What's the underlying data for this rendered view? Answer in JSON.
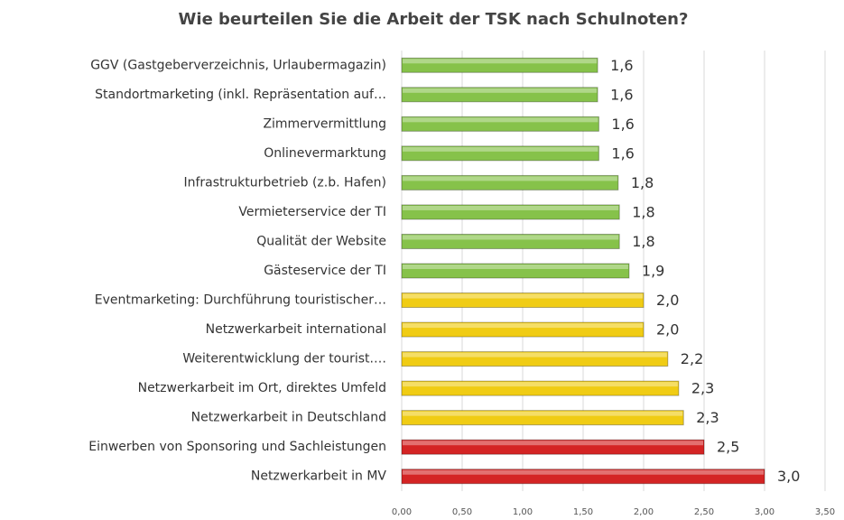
{
  "chart_data": {
    "type": "bar",
    "orientation": "horizontal",
    "title": "Wie beurteilen Sie die Arbeit der TSK nach Schulnoten?",
    "categories": [
      "GGV (Gastgeberverzeichnis, Urlaubermagazin)",
      "Standortmarketing (inkl. Repräsentation auf…",
      "Zimmervermittlung",
      "Onlinevermarktung",
      "Infrastrukturbetrieb (z.b. Hafen)",
      "Vermieterservice der TI",
      "Qualität der Website",
      "Gästeservice der TI",
      "Eventmarketing: Durchführung touristischer…",
      "Netzwerkarbeit international",
      "Weiterentwicklung der tourist.…",
      "Netzwerkarbeit im Ort, direktes Umfeld",
      "Netzwerkarbeit in Deutschland",
      "Einwerben von Sponsoring und Sachleistungen",
      "Netzwerkarbeit in MV"
    ],
    "values": [
      1.62,
      1.62,
      1.63,
      1.63,
      1.79,
      1.8,
      1.8,
      1.88,
      2.0,
      2.0,
      2.2,
      2.29,
      2.33,
      2.5,
      3.0
    ],
    "value_labels": [
      "1,6",
      "1,6",
      "1,6",
      "1,6",
      "1,8",
      "1,8",
      "1,8",
      "1,9",
      "2,0",
      "2,0",
      "2,2",
      "2,3",
      "2,3",
      "2,5",
      "3,0"
    ],
    "colors": [
      "#86c24a",
      "#86c24a",
      "#86c24a",
      "#86c24a",
      "#86c24a",
      "#86c24a",
      "#86c24a",
      "#86c24a",
      "#f0cc14",
      "#f0cc14",
      "#f0cc14",
      "#f0cc14",
      "#f0cc14",
      "#d42424",
      "#d42424"
    ],
    "xlim": [
      0,
      3.5
    ],
    "xticks": [
      {
        "value": 0,
        "label": "0,00"
      },
      {
        "value": 0.5,
        "label": "0,50"
      },
      {
        "value": 1,
        "label": "1,00"
      },
      {
        "value": 1.5,
        "label": "1,50"
      },
      {
        "value": 2,
        "label": "2,00"
      },
      {
        "value": 2.5,
        "label": "2,50"
      },
      {
        "value": 3,
        "label": "3,00"
      },
      {
        "value": 3.5,
        "label": "3,50"
      }
    ],
    "grid": true
  }
}
